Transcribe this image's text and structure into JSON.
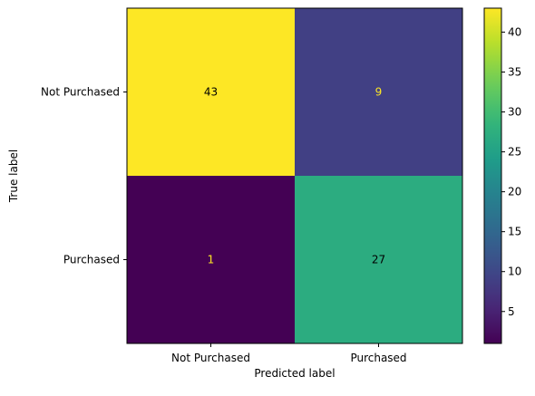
{
  "chart_data": {
    "type": "heatmap",
    "title": "",
    "xlabel": "Predicted label",
    "ylabel": "True label",
    "x_categories": [
      "Not Purchased",
      "Purchased"
    ],
    "y_categories": [
      "Not Purchased",
      "Purchased"
    ],
    "values": [
      [
        43,
        9
      ],
      [
        1,
        27
      ]
    ],
    "colormap": "viridis",
    "colorbar": {
      "range": [
        1,
        43
      ],
      "ticks": [
        5,
        10,
        15,
        20,
        25,
        30,
        35,
        40
      ]
    },
    "cell_text_colors": {
      "on_dark": "#fde725",
      "on_light": "#000000"
    }
  }
}
